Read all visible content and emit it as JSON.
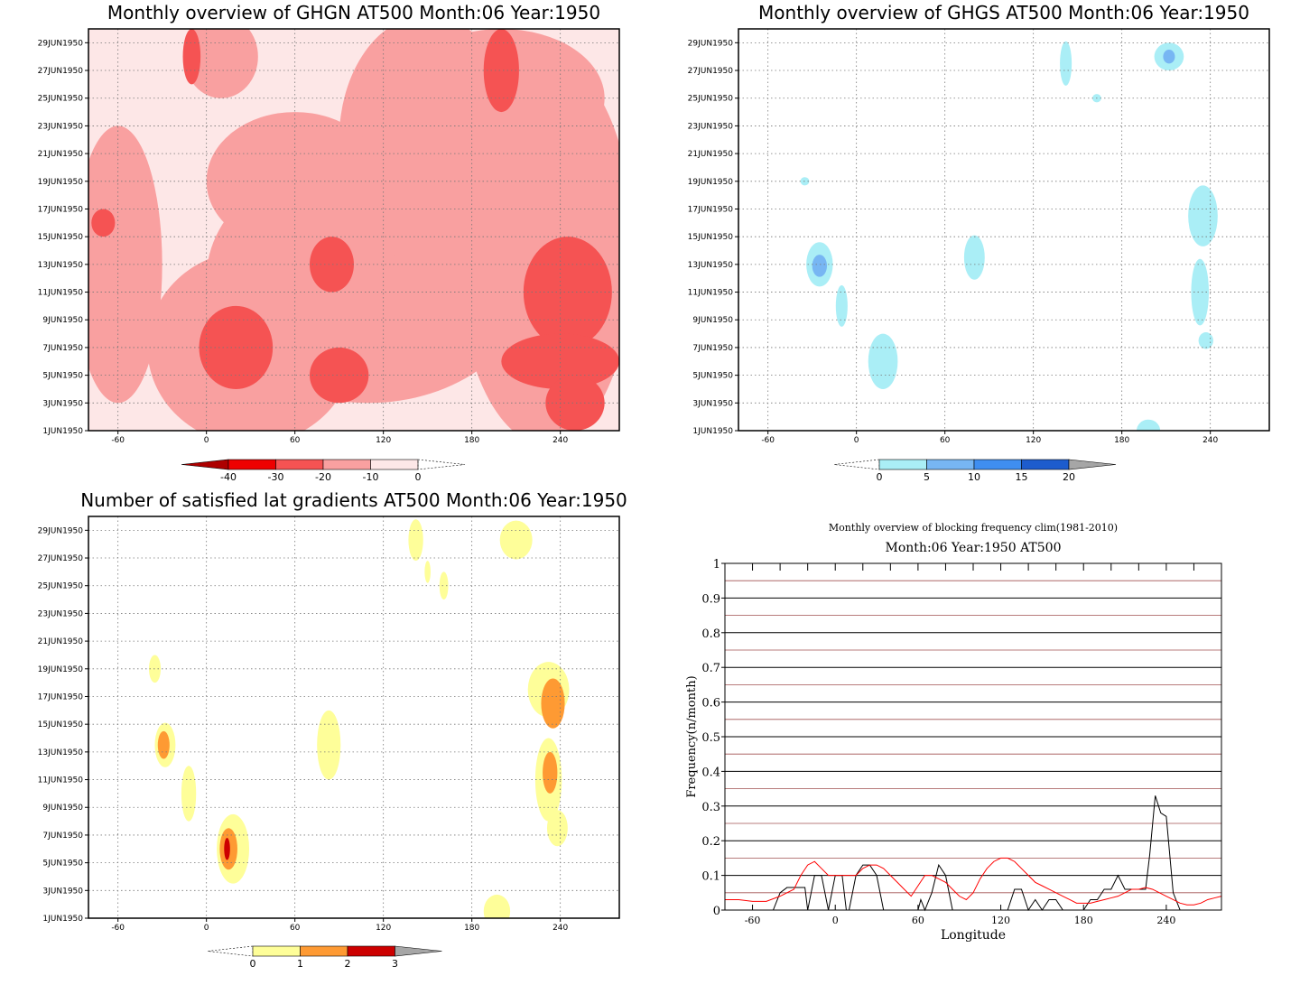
{
  "colors": {
    "ghgn": [
      "#fde7e7",
      "#f9a0a0",
      "#f55353",
      "#ee0000",
      "#ad0000"
    ],
    "ghgs": [
      "#aaeef6",
      "#77b6f3",
      "#3f8ef0",
      "#1d5ccd",
      "#a6a6a6"
    ],
    "lat": [
      "#fefe99",
      "#fe9a33",
      "#cc0000",
      "#a6a6a6"
    ],
    "series_black": "#000000",
    "series_red": "#ff0000"
  },
  "chart_data": [
    {
      "id": "ghgn",
      "type": "heatmap",
      "title": "Monthly overview of GHGN AT500 Month:06 Year:1950",
      "xticks": [
        -60,
        0,
        60,
        120,
        180,
        240
      ],
      "xlim": [
        -80,
        280
      ],
      "yticks": [
        "1JUN1950",
        "3JUN1950",
        "5JUN1950",
        "7JUN1950",
        "9JUN1950",
        "11JUN1950",
        "13JUN1950",
        "15JUN1950",
        "17JUN1950",
        "19JUN1950",
        "21JUN1950",
        "23JUN1950",
        "25JUN1950",
        "27JUN1950",
        "29JUN1950"
      ],
      "colorbar": {
        "labels": [
          "-40",
          "-30",
          "-20",
          "-10",
          "0"
        ]
      },
      "blobs": [
        {
          "level": 1,
          "lon": 30,
          "day": 7,
          "rx": 70,
          "ry": 7
        },
        {
          "level": 1,
          "lon": 110,
          "day": 12,
          "rx": 110,
          "ry": 9
        },
        {
          "level": 1,
          "lon": 230,
          "day": 14,
          "rx": 60,
          "ry": 14
        },
        {
          "level": 1,
          "lon": 150,
          "day": 22,
          "rx": 60,
          "ry": 9
        },
        {
          "level": 1,
          "lon": 60,
          "day": 19,
          "rx": 60,
          "ry": 5
        },
        {
          "level": 1,
          "lon": 200,
          "day": 25,
          "rx": 70,
          "ry": 5
        },
        {
          "level": 1,
          "lon": -60,
          "day": 13,
          "rx": 30,
          "ry": 10
        },
        {
          "level": 1,
          "lon": 10,
          "day": 28,
          "rx": 25,
          "ry": 3
        },
        {
          "level": 2,
          "lon": 20,
          "day": 7,
          "rx": 25,
          "ry": 3
        },
        {
          "level": 2,
          "lon": 85,
          "day": 13,
          "rx": 15,
          "ry": 2
        },
        {
          "level": 2,
          "lon": 90,
          "day": 5,
          "rx": 20,
          "ry": 2
        },
        {
          "level": 2,
          "lon": 200,
          "day": 27,
          "rx": 12,
          "ry": 3
        },
        {
          "level": 2,
          "lon": -10,
          "day": 28,
          "rx": 6,
          "ry": 2
        },
        {
          "level": 2,
          "lon": 245,
          "day": 11,
          "rx": 30,
          "ry": 4
        },
        {
          "level": 2,
          "lon": 240,
          "day": 6,
          "rx": 40,
          "ry": 2
        },
        {
          "level": 2,
          "lon": -70,
          "day": 16,
          "rx": 8,
          "ry": 1
        },
        {
          "level": 2,
          "lon": 250,
          "day": 3,
          "rx": 20,
          "ry": 2
        }
      ]
    },
    {
      "id": "ghgs",
      "type": "heatmap",
      "title": "Monthly overview of GHGS AT500 Month:06 Year:1950",
      "xticks": [
        -60,
        0,
        60,
        120,
        180,
        240
      ],
      "xlim": [
        -80,
        280
      ],
      "yticks": [
        "1JUN1950",
        "3JUN1950",
        "5JUN1950",
        "7JUN1950",
        "9JUN1950",
        "11JUN1950",
        "13JUN1950",
        "15JUN1950",
        "17JUN1950",
        "19JUN1950",
        "21JUN1950",
        "23JUN1950",
        "25JUN1950",
        "27JUN1950",
        "29JUN1950"
      ],
      "colorbar": {
        "labels": [
          "0",
          "5",
          "10",
          "15",
          "20"
        ]
      },
      "blobs": [
        {
          "level": 0,
          "lon": -25,
          "day": 13,
          "rx": 9,
          "ry": 1.6
        },
        {
          "level": 1,
          "lon": -25,
          "day": 12.9,
          "rx": 5,
          "ry": 0.8
        },
        {
          "level": 0,
          "lon": -10,
          "day": 10,
          "rx": 4,
          "ry": 1.5
        },
        {
          "level": 0,
          "lon": 18,
          "day": 6,
          "rx": 10,
          "ry": 2
        },
        {
          "level": 0,
          "lon": 80,
          "day": 13.5,
          "rx": 7,
          "ry": 1.6
        },
        {
          "level": 0,
          "lon": 235,
          "day": 16.5,
          "rx": 10,
          "ry": 2.2
        },
        {
          "level": 0,
          "lon": 233,
          "day": 11,
          "rx": 6,
          "ry": 2.4
        },
        {
          "level": 0,
          "lon": 237,
          "day": 7.5,
          "rx": 5,
          "ry": 0.6
        },
        {
          "level": 0,
          "lon": 142,
          "day": 27.5,
          "rx": 4,
          "ry": 1.6
        },
        {
          "level": 0,
          "lon": 212,
          "day": 28,
          "rx": 10,
          "ry": 1
        },
        {
          "level": 1,
          "lon": 212,
          "day": 28,
          "rx": 4,
          "ry": 0.5
        },
        {
          "level": 0,
          "lon": 163,
          "day": 25,
          "rx": 3,
          "ry": 0.3
        },
        {
          "level": 0,
          "lon": 198,
          "day": 1,
          "rx": 8,
          "ry": 0.8
        },
        {
          "level": 0,
          "lon": -35,
          "day": 19,
          "rx": 3,
          "ry": 0.3
        }
      ]
    },
    {
      "id": "lat",
      "type": "heatmap",
      "title": "Number of satisfied lat gradients AT500 Month:06 Year:1950",
      "xticks": [
        -60,
        0,
        60,
        120,
        180,
        240
      ],
      "xlim": [
        -80,
        280
      ],
      "yticks": [
        "1JUN1950",
        "3JUN1950",
        "5JUN1950",
        "7JUN1950",
        "9JUN1950",
        "11JUN1950",
        "13JUN1950",
        "15JUN1950",
        "17JUN1950",
        "19JUN1950",
        "21JUN1950",
        "23JUN1950",
        "25JUN1950",
        "27JUN1950",
        "29JUN1950"
      ],
      "colorbar": {
        "labels": [
          "0",
          "1",
          "2",
          "3"
        ]
      },
      "blobs": [
        {
          "level": 0,
          "lon": -35,
          "day": 19,
          "rx": 4,
          "ry": 1
        },
        {
          "level": 0,
          "lon": -28,
          "day": 13.5,
          "rx": 7,
          "ry": 1.6
        },
        {
          "level": 1,
          "lon": -29,
          "day": 13.5,
          "rx": 4,
          "ry": 1
        },
        {
          "level": 0,
          "lon": -12,
          "day": 10,
          "rx": 5,
          "ry": 2
        },
        {
          "level": 0,
          "lon": 18,
          "day": 6,
          "rx": 11,
          "ry": 2.5
        },
        {
          "level": 1,
          "lon": 15,
          "day": 6,
          "rx": 6,
          "ry": 1.5
        },
        {
          "level": 2,
          "lon": 14,
          "day": 6,
          "rx": 2,
          "ry": 0.8
        },
        {
          "level": 0,
          "lon": 83,
          "day": 13.5,
          "rx": 8,
          "ry": 2.5
        },
        {
          "level": 0,
          "lon": 232,
          "day": 17.5,
          "rx": 14,
          "ry": 2
        },
        {
          "level": 1,
          "lon": 235,
          "day": 16.5,
          "rx": 8,
          "ry": 1.8
        },
        {
          "level": 0,
          "lon": 232,
          "day": 11,
          "rx": 9,
          "ry": 3
        },
        {
          "level": 1,
          "lon": 233,
          "day": 11.5,
          "rx": 5,
          "ry": 1.5
        },
        {
          "level": 0,
          "lon": 238,
          "day": 7.5,
          "rx": 7,
          "ry": 1.3
        },
        {
          "level": 0,
          "lon": 142,
          "day": 28.3,
          "rx": 5,
          "ry": 1.5
        },
        {
          "level": 0,
          "lon": 150,
          "day": 26,
          "rx": 2,
          "ry": 0.8
        },
        {
          "level": 0,
          "lon": 161,
          "day": 25,
          "rx": 3,
          "ry": 1
        },
        {
          "level": 0,
          "lon": 210,
          "day": 28.3,
          "rx": 11,
          "ry": 1.4
        },
        {
          "level": 0,
          "lon": 197,
          "day": 1.5,
          "rx": 9,
          "ry": 1.2
        }
      ]
    },
    {
      "id": "freq",
      "type": "line",
      "title": "Monthly overview of blocking frequency clim(1981-2010)",
      "subtitle": "Month:06 Year:1950  AT500",
      "xlabel": "Longitude",
      "ylabel": "Frequency(n/month)",
      "xlim": [
        -80,
        280
      ],
      "ylim": [
        0,
        1
      ],
      "xticks": [
        -60,
        0,
        60,
        120,
        180,
        240
      ],
      "yticks": [
        "0",
        "0.1",
        "0.2",
        "0.3",
        "0.4",
        "0.5",
        "0.6",
        "0.7",
        "0.8",
        "0.9",
        "1"
      ],
      "series": [
        {
          "color": "black",
          "x": [
            -80,
            -45,
            -40,
            -35,
            -30,
            -25,
            -22,
            -20,
            -15,
            -10,
            -5,
            0,
            5,
            8,
            10,
            15,
            20,
            25,
            30,
            35,
            40,
            45,
            50,
            55,
            60,
            62,
            65,
            70,
            75,
            80,
            85,
            90,
            95,
            100,
            120,
            125,
            130,
            135,
            140,
            145,
            150,
            155,
            160,
            165,
            170,
            175,
            180,
            185,
            190,
            195,
            200,
            205,
            210,
            215,
            220,
            225,
            228,
            232,
            236,
            240,
            245,
            250,
            280
          ],
          "y": [
            0,
            0,
            0.05,
            0.065,
            0.065,
            0.065,
            0.065,
            0,
            0.1,
            0.1,
            0,
            0.1,
            0.1,
            0,
            0,
            0.1,
            0.13,
            0.13,
            0.1,
            0,
            0,
            0,
            0,
            0,
            0,
            0.03,
            0,
            0.05,
            0.13,
            0.1,
            0,
            0,
            0,
            0,
            0,
            0,
            0.06,
            0.06,
            0,
            0.03,
            0,
            0.03,
            0.03,
            0,
            0,
            0,
            0,
            0.03,
            0.03,
            0.06,
            0.06,
            0.1,
            0.06,
            0.06,
            0.06,
            0.06,
            0.16,
            0.33,
            0.28,
            0.27,
            0.05,
            0,
            0
          ]
        },
        {
          "color": "red",
          "x": [
            -80,
            -70,
            -60,
            -50,
            -40,
            -30,
            -25,
            -20,
            -15,
            -10,
            -5,
            0,
            5,
            10,
            15,
            20,
            25,
            30,
            35,
            40,
            45,
            50,
            55,
            60,
            65,
            70,
            75,
            80,
            85,
            90,
            95,
            100,
            105,
            110,
            115,
            120,
            125,
            130,
            135,
            140,
            145,
            150,
            155,
            160,
            165,
            170,
            175,
            180,
            185,
            190,
            195,
            200,
            205,
            210,
            215,
            220,
            225,
            230,
            235,
            240,
            245,
            250,
            255,
            260,
            265,
            270,
            275,
            280
          ],
          "y": [
            0.03,
            0.03,
            0.025,
            0.025,
            0.04,
            0.06,
            0.1,
            0.13,
            0.14,
            0.12,
            0.1,
            0.1,
            0.1,
            0.1,
            0.1,
            0.12,
            0.13,
            0.13,
            0.12,
            0.1,
            0.08,
            0.06,
            0.04,
            0.07,
            0.1,
            0.1,
            0.09,
            0.08,
            0.06,
            0.04,
            0.03,
            0.05,
            0.09,
            0.12,
            0.14,
            0.15,
            0.15,
            0.14,
            0.12,
            0.1,
            0.08,
            0.07,
            0.06,
            0.05,
            0.04,
            0.03,
            0.02,
            0.02,
            0.02,
            0.025,
            0.03,
            0.035,
            0.04,
            0.05,
            0.06,
            0.06,
            0.065,
            0.06,
            0.05,
            0.04,
            0.03,
            0.02,
            0.015,
            0.015,
            0.02,
            0.03,
            0.035,
            0.04
          ]
        }
      ]
    }
  ]
}
